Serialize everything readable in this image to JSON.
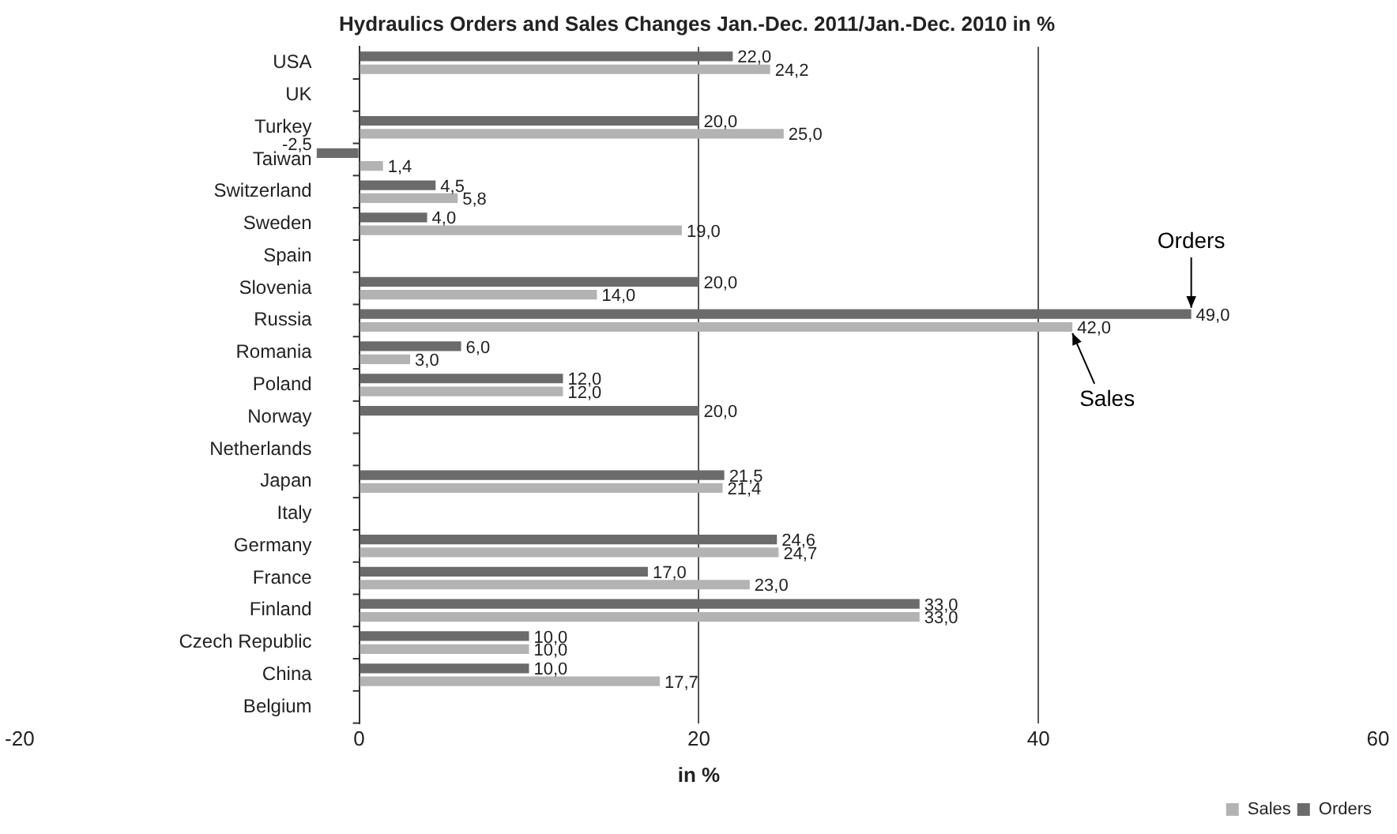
{
  "chart_data": {
    "type": "bar",
    "orientation": "horizontal",
    "title": "Hydraulics Orders and Sales Changes Jan.-Dec. 2011/Jan.-Dec. 2010 in %",
    "xlabel": "in %",
    "categories": [
      "USA",
      "UK",
      "Turkey",
      "Taiwan",
      "Switzerland",
      "Sweden",
      "Spain",
      "Slovenia",
      "Russia",
      "Romania",
      "Poland",
      "Norway",
      "Netherlands",
      "Japan",
      "Italy",
      "Germany",
      "France",
      "Finland",
      "Czech Republic",
      "China",
      "Belgium"
    ],
    "series": [
      {
        "name": "Orders",
        "color": "#6b6b6b",
        "values": [
          22.0,
          null,
          20.0,
          -2.5,
          4.5,
          4.0,
          null,
          20.0,
          49.0,
          6.0,
          12.0,
          20.0,
          null,
          21.5,
          null,
          24.6,
          17.0,
          33.0,
          10.0,
          10.0,
          null
        ],
        "value_labels": [
          "22,0",
          null,
          "20,0",
          "-2,5",
          "4,5",
          "4,0",
          null,
          "20,0",
          "49,0",
          "6,0",
          "12,0",
          "20,0",
          null,
          "21,5",
          null,
          "24,6",
          "17,0",
          "33,0",
          "10,0",
          "10,0",
          null
        ]
      },
      {
        "name": "Sales",
        "color": "#b3b3b3",
        "values": [
          24.2,
          null,
          25.0,
          1.4,
          5.8,
          19.0,
          null,
          14.0,
          42.0,
          3.0,
          12.0,
          null,
          null,
          21.4,
          null,
          24.7,
          23.0,
          33.0,
          10.0,
          17.7,
          null
        ],
        "value_labels": [
          "24,2",
          null,
          "25,0",
          "1,4",
          "5,8",
          "19,0",
          null,
          "14,0",
          "42,0",
          "3,0",
          "12,0",
          null,
          null,
          "21,4",
          null,
          "24,7",
          "23,0",
          "33,0",
          "10,0",
          "17,7",
          null
        ]
      }
    ],
    "xlim": [
      -20,
      60
    ],
    "xticks": [
      -20,
      0,
      20,
      40,
      60
    ],
    "grid": "x",
    "legend": "bottom right",
    "annotations": [
      {
        "text": "Orders",
        "x": 49,
        "y": "Russia"
      },
      {
        "text": "Sales",
        "x": 42,
        "y": "Russia"
      }
    ]
  }
}
